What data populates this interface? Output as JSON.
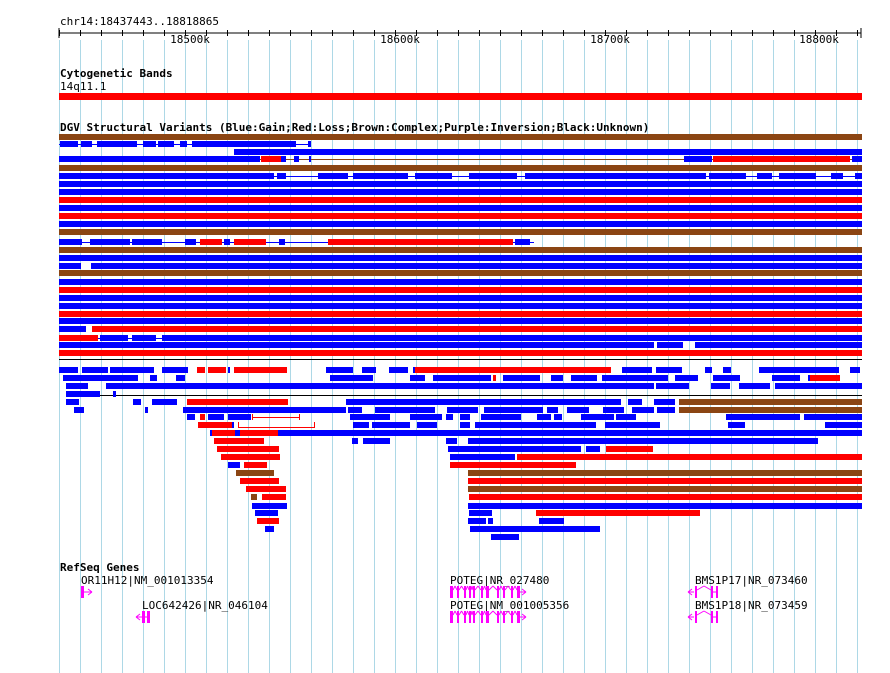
{
  "region": "chr14:18437443..18818865",
  "ruler": {
    "ticks": [
      "18500k",
      "18600k",
      "18700k",
      "18800k"
    ]
  },
  "cytobands": {
    "title": "Cytogenetic Bands",
    "band": "14q11.1"
  },
  "dgv": {
    "title": "DGV Structural Variants (Blue:Gain;Red:Loss;Brown:Complex;Purple:Inversion;Black:Unknown)"
  },
  "refseq": {
    "title": "RefSeq Genes",
    "genes": [
      {
        "label": "OR11H12|NM_001013354"
      },
      {
        "label": "LOC642426|NR_046104"
      },
      {
        "label": "POTEG|NR_027480"
      },
      {
        "label": "POTEG|NM_001005356"
      },
      {
        "label": "BMS1P17|NR_073460"
      },
      {
        "label": "BMS1P18|NR_073459"
      }
    ]
  },
  "colors": {
    "gain": "#0000ff",
    "loss": "#ff0000",
    "complex": "#8b4513",
    "gene": "#ff00ff",
    "grid": "#add8e6",
    "band": "#ff0000"
  }
}
